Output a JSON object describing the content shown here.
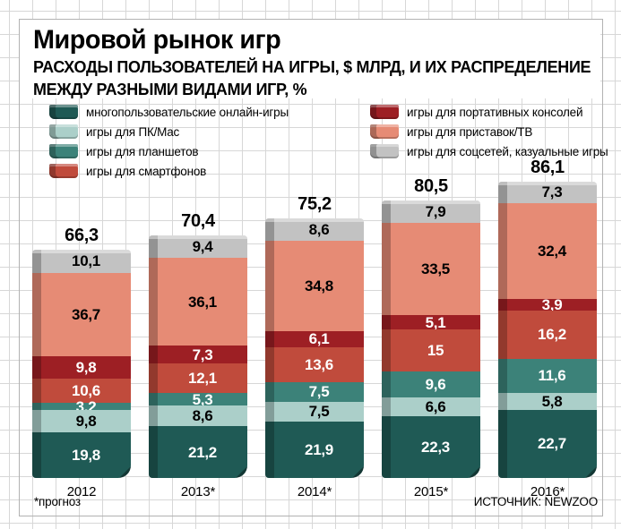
{
  "header": {
    "title": "Мировой рынок игр",
    "subtitle_line1": "РАСХОДЫ ПОЛЬЗОВАТЕЛЕЙ НА ИГРЫ, $ МЛРД, И ИХ РАСПРЕДЕЛЕНИЕ",
    "subtitle_line2": "МЕЖДУ РАЗНЫМИ ВИДАМИ ИГР, %"
  },
  "footer": {
    "footnote": "*прогноз",
    "source": "ИСТОЧНИК: NEWZOO"
  },
  "legend": {
    "columns": [
      [
        0,
        1,
        2,
        3
      ],
      [
        4,
        5,
        6
      ]
    ]
  },
  "chart_data": {
    "type": "bar",
    "stacked": true,
    "title": "Мировой рынок игр",
    "categories": [
      "2012",
      "2013*",
      "2014*",
      "2015*",
      "2016*"
    ],
    "totals": [
      66.3,
      70.4,
      75.2,
      80.5,
      86.1
    ],
    "totals_unit": "$ млрд",
    "values_unit": "%",
    "decimal_separator": ",",
    "series": [
      {
        "name": "многопользовательские онлайн-игры",
        "color": "#1f5a55",
        "text_color": "#ffffff",
        "values": [
          19.8,
          21.2,
          21.9,
          22.3,
          22.7
        ]
      },
      {
        "name": "игры для ПК/Mac",
        "color": "#abcfc9",
        "text_color": "#000000",
        "values": [
          9.8,
          8.6,
          7.5,
          6.6,
          5.8
        ]
      },
      {
        "name": "игры для планшетов",
        "color": "#3c8279",
        "text_color": "#ffffff",
        "values": [
          3.2,
          5.3,
          7.5,
          9.6,
          11.6
        ]
      },
      {
        "name": "игры для смартфонов",
        "color": "#c04b3c",
        "text_color": "#ffffff",
        "values": [
          10.6,
          12.1,
          13.6,
          15,
          16.2
        ]
      },
      {
        "name": "игры для портативных консолей",
        "color": "#9d1f24",
        "text_color": "#ffffff",
        "values": [
          9.8,
          7.3,
          6.1,
          5.1,
          3.9
        ]
      },
      {
        "name": "игры для приставок/ТВ",
        "color": "#e68b75",
        "text_color": "#000000",
        "values": [
          36.7,
          36.1,
          34.8,
          33.5,
          32.4
        ]
      },
      {
        "name": "игры для соцсетей, казуальные игры",
        "color": "#c2c2c2",
        "text_color": "#000000",
        "values": [
          10.1,
          9.4,
          8.6,
          7.9,
          7.3
        ]
      }
    ]
  }
}
